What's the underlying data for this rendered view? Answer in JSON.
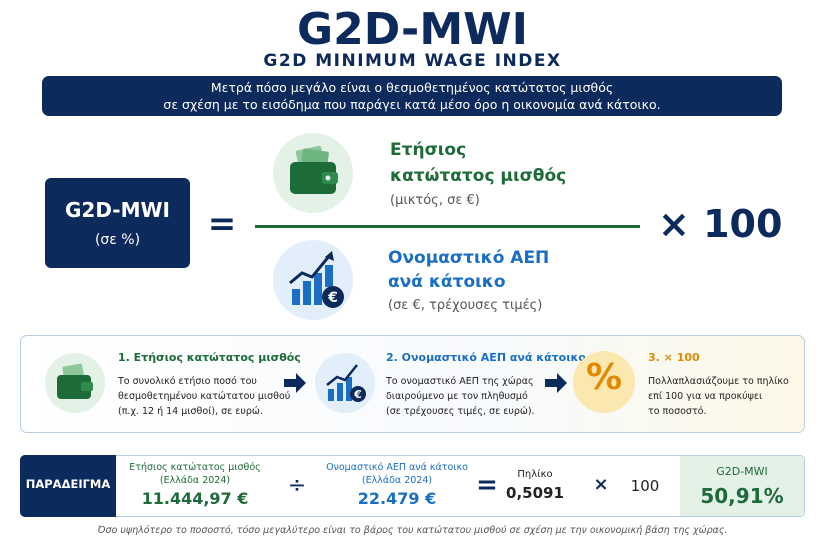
{
  "header": {
    "title": "G2D-MWI",
    "subtitle": "G2D MINIMUM WAGE INDEX",
    "description_line1": "Μετρά πόσο μεγάλο είναι ο θεσμοθετημένος κατώτατος μισθός",
    "description_line2": "σε σχέση με το εισόδημα που παράγει κατά μέσο όρο η οικονομία ανά κάτοικο."
  },
  "formula": {
    "lhs_title": "G2D-MWI",
    "lhs_unit": "(σε %)",
    "equals": "=",
    "numerator_line1": "Ετήσιος",
    "numerator_line2": "κατώτατος μισθός",
    "numerator_note": "(μικτός, σε €)",
    "denominator_line1": "Ονομαστικό ΑΕΠ",
    "denominator_line2": "ανά κάτοικο",
    "denominator_note": "(σε €, τρέχουσες τιμές)",
    "multiplier": "× 100",
    "currency_symbol": "€"
  },
  "steps": [
    {
      "title": "1. Ετήσιος κατώτατος μισθός",
      "lines": [
        "Το συνολικό ετήσιο ποσό του",
        "θεσμοθετημένου κατώτατου μισθού",
        "(π.χ. 12 ή 14 μισθοί), σε ευρώ."
      ]
    },
    {
      "title": "2. Ονομαστικό ΑΕΠ ανά κάτοικο",
      "lines": [
        "Το ονομαστικό ΑΕΠ της χώρας",
        "διαιρούμενο με τον πληθυσμό",
        "(σε τρέχουσες τιμές, σε ευρώ)."
      ]
    },
    {
      "icon": "%",
      "title": "3. × 100",
      "lines": [
        "Πολλαπλασιάζουμε το πηλίκο",
        "επί 100 για να προκύψει",
        "το ποσοστό."
      ]
    }
  ],
  "example": {
    "label": "ΠΑΡΑΔΕΙΓΜΑ",
    "wage_label": "Ετήσιος κατώτατος μισθός",
    "wage_year": "(Ελλάδα 2024)",
    "wage_value": "11.444,97 €",
    "divide": "÷",
    "gdp_label": "Ονομαστικό ΑΕΠ ανά κάτοικο",
    "gdp_year": "(Ελλάδα 2024)",
    "gdp_value": "22.479 €",
    "equals": "=",
    "ratio_label": "Πηλίκο",
    "ratio_value": "0,5091",
    "times": "×",
    "hundred": "100",
    "result_label": "G2D-MWI",
    "result_value": "50,91%"
  },
  "footnote": "Όσο υψηλότερο το ποσοστό, τόσο μεγαλύτερο είναι το βάρος του κατώτατου μισθού σε σχέση με την οικονομική βάση της χώρας."
}
